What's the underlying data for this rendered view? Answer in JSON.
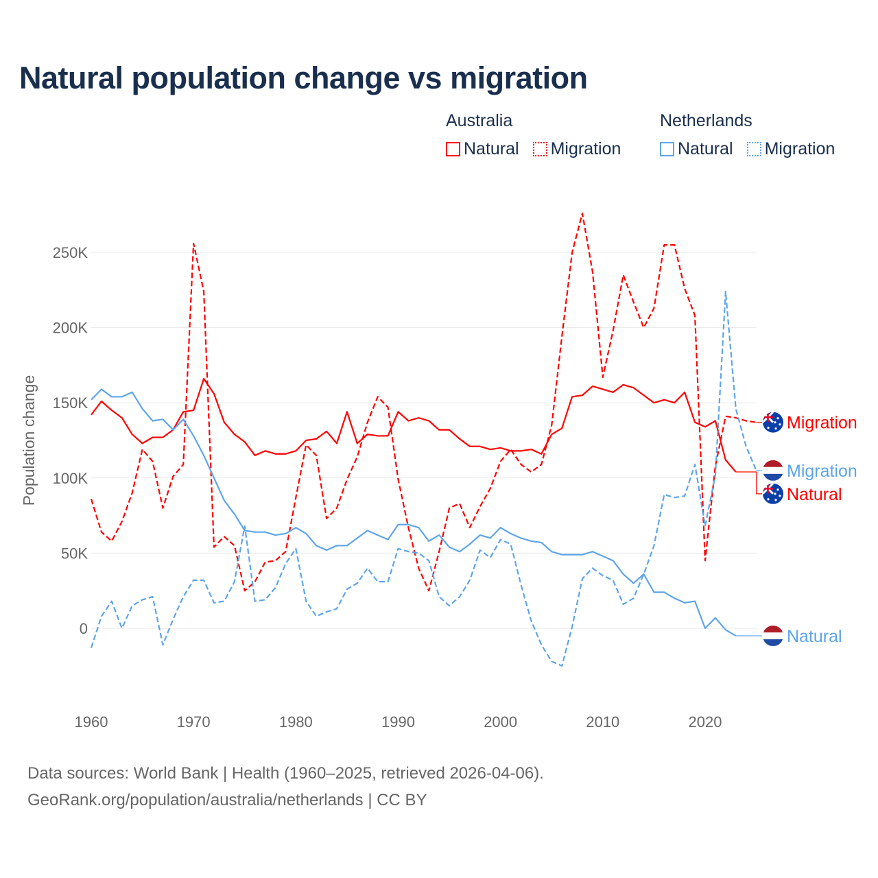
{
  "chart_data": {
    "type": "line",
    "title": "Natural population change vs migration",
    "xlabel": "",
    "ylabel": "Population change",
    "xlim": [
      1960,
      2025
    ],
    "ylim": [
      -45000,
      300000
    ],
    "x_ticks": [
      "1960",
      "1970",
      "1980",
      "1990",
      "2000",
      "2010",
      "2020"
    ],
    "y_ticks": [
      {
        "value": 0,
        "label": "0"
      },
      {
        "value": 50000,
        "label": "50K"
      },
      {
        "value": 100000,
        "label": "100K"
      },
      {
        "value": 150000,
        "label": "150K"
      },
      {
        "value": 200000,
        "label": "200K"
      },
      {
        "value": 250000,
        "label": "250K"
      }
    ],
    "grid": true,
    "legend_placement": "top-right",
    "legend_groups": [
      {
        "country": "Australia",
        "items": [
          "Natural",
          "Migration"
        ]
      },
      {
        "country": "Netherlands",
        "items": [
          "Natural",
          "Migration"
        ]
      }
    ],
    "series": [
      {
        "name": "Australia Natural",
        "country": "Australia",
        "kind": "Natural",
        "end_label": "Natural",
        "color": "#ff0000",
        "dash": false,
        "start": 1960,
        "values": [
          142,
          151,
          145,
          140,
          129,
          123,
          127,
          127,
          132,
          144,
          145,
          166,
          156,
          137,
          129,
          124,
          115,
          118,
          116,
          116,
          118,
          125,
          126,
          131,
          123,
          144,
          123,
          129,
          128,
          128,
          144,
          138,
          140,
          138,
          132,
          132,
          126,
          121,
          121,
          119,
          120,
          118,
          118,
          119,
          116,
          129,
          133,
          154,
          155,
          161,
          159,
          157,
          162,
          160,
          155,
          150,
          152,
          150,
          157,
          137,
          134,
          138,
          112,
          104
        ]
      },
      {
        "name": "Australia Migration",
        "country": "Australia",
        "kind": "Migration",
        "end_label": "Migration",
        "color": "#ff0000",
        "dash": true,
        "start": 1960,
        "values": [
          86,
          64,
          58,
          71,
          90,
          119,
          111,
          80,
          101,
          109,
          256,
          224,
          54,
          61,
          55,
          25,
          31,
          44,
          45,
          51,
          87,
          122,
          115,
          73,
          80,
          99,
          114,
          137,
          154,
          147,
          99,
          67,
          40,
          25,
          51,
          80,
          83,
          67,
          81,
          93,
          111,
          119,
          109,
          104,
          109,
          135,
          194,
          250,
          276,
          237,
          167,
          198,
          235,
          217,
          200,
          213,
          255,
          255,
          226,
          208,
          45,
          108,
          141,
          140,
          138,
          137
        ]
      },
      {
        "name": "Netherlands Natural",
        "country": "Netherlands",
        "kind": "Natural",
        "end_label": "Natural",
        "color": "#5da5ea",
        "dash": false,
        "start": 1960,
        "values": [
          152,
          159,
          154,
          154,
          157,
          146,
          138,
          139,
          132,
          139,
          128,
          115,
          100,
          85,
          76,
          65,
          64,
          64,
          62,
          63,
          67,
          63,
          55,
          52,
          55,
          55,
          60,
          65,
          62,
          59,
          69,
          69,
          67,
          58,
          62,
          54,
          51,
          56,
          62,
          60,
          67,
          63,
          60,
          58,
          57,
          51,
          49,
          49,
          49,
          51,
          48,
          45,
          36,
          30,
          36,
          24,
          24,
          20,
          17,
          18,
          0,
          7,
          -1,
          -5
        ]
      },
      {
        "name": "Netherlands Migration",
        "country": "Netherlands",
        "kind": "Migration",
        "end_label": "Migration",
        "color": "#5da5ea",
        "dash": true,
        "start": 1960,
        "values": [
          -13,
          8,
          18,
          0,
          15,
          19,
          21,
          -11,
          6,
          21,
          32,
          32,
          17,
          18,
          31,
          68,
          18,
          19,
          27,
          43,
          53,
          18,
          8,
          11,
          13,
          26,
          30,
          40,
          31,
          31,
          53,
          51,
          50,
          45,
          21,
          15,
          21,
          32,
          52,
          47,
          59,
          56,
          29,
          5,
          -11,
          -22,
          -25,
          1,
          33,
          40,
          35,
          32,
          16,
          20,
          36,
          55,
          89,
          87,
          88,
          109,
          68,
          102,
          224,
          146,
          121,
          105
        ]
      }
    ],
    "value_unit": "thousands"
  },
  "footer": {
    "line1": "Data sources: World Bank | Health (1960–2025, retrieved 2026-04-06).",
    "line2": "GeoRank.org/population/australia/netherlands | CC BY"
  },
  "colors": {
    "australia": "#ff0000",
    "netherlands": "#5da5ea",
    "title": "#1a2f4e",
    "grid": "#e6e6e6",
    "axis_text": "#666666"
  }
}
